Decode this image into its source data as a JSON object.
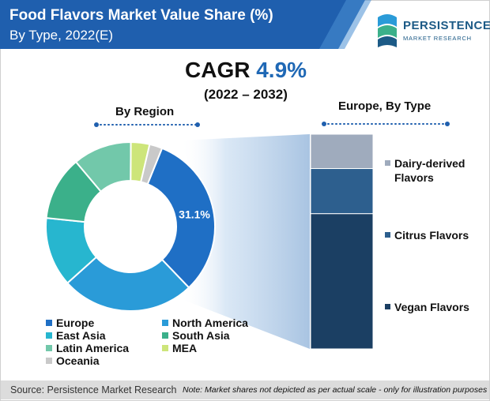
{
  "header": {
    "title": "Food Flavors Market Value Share (%)",
    "subtitle": "By Type, 2022(E)"
  },
  "logo": {
    "word": "PERSISTENCE",
    "sub": "MARKET RESEARCH"
  },
  "cagr": {
    "label": "CAGR",
    "value": "4.9%",
    "period": "(2022 – 2032)"
  },
  "chart_data": [
    {
      "type": "pie",
      "variant": "donut",
      "title": "By Region",
      "slices": [
        {
          "name": "Europe",
          "value": 31.1,
          "color": "#1f6fc5",
          "label": "31.1%"
        },
        {
          "name": "North America",
          "value": 25.0,
          "color": "#2a9bd8",
          "label": ""
        },
        {
          "name": "East Asia",
          "value": 13.0,
          "color": "#27b6cf",
          "label": ""
        },
        {
          "name": "South Asia",
          "value": 12.0,
          "color": "#3bb08a",
          "label": ""
        },
        {
          "name": "Latin America",
          "value": 11.0,
          "color": "#72c8aa",
          "label": ""
        },
        {
          "name": "MEA",
          "value": 3.5,
          "color": "#cde57a",
          "label": ""
        },
        {
          "name": "Oceania",
          "value": 2.4,
          "color": "#c9c9c9",
          "label": ""
        }
      ]
    },
    {
      "type": "bar",
      "variant": "100% stacked",
      "title": "Europe, By Type",
      "segments": [
        {
          "name": "Vegan Flavors",
          "value": 63,
          "color": "#1b3f63"
        },
        {
          "name": "Citrus Flavors",
          "value": 21,
          "color": "#2d5f8e"
        },
        {
          "name": "Dairy-derived Flavors",
          "value": 16,
          "color": "#9fabbd"
        }
      ]
    }
  ],
  "type_labels": [
    "Dairy-derived",
    "Flavors",
    "Citrus Flavors",
    "Vegan Flavors"
  ],
  "footer": {
    "source": "Source: Persistence Market Research",
    "note": "Note: Market shares not depicted as per actual scale - only for illustration purposes"
  },
  "colors": {
    "title_band": "#1f5fae",
    "accent": "#1f68b5"
  }
}
